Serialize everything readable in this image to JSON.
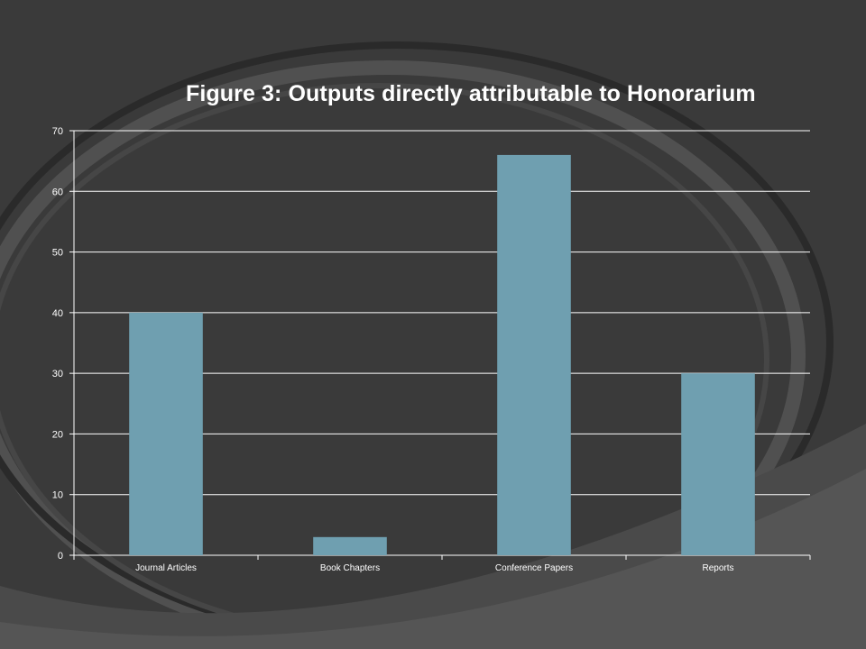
{
  "colors": {
    "background": "#3a3a3a",
    "bar": "#6f9fb0",
    "gridline": "#ffffff",
    "text": "#ffffff"
  },
  "chart_data": {
    "type": "bar",
    "title": "Figure 3: Outputs directly attributable to Honorarium",
    "categories": [
      "Journal Articles",
      "Book Chapters",
      "Conference Papers",
      "Reports"
    ],
    "values": [
      40,
      3,
      66,
      30
    ],
    "xlabel": "",
    "ylabel": "",
    "ylim": [
      0,
      70
    ],
    "yticks": [
      "0",
      "10",
      "20",
      "30",
      "40",
      "50",
      "60",
      "70"
    ],
    "grid": true,
    "legend": "none"
  }
}
